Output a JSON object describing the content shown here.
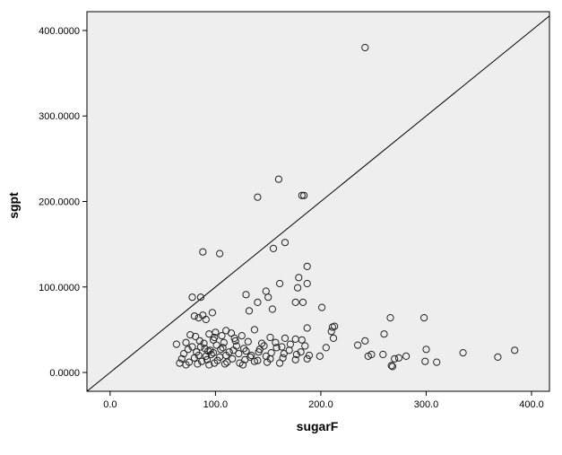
{
  "chart_data": {
    "type": "scatter",
    "title": "",
    "xlabel": "sugarF",
    "ylabel": "sgpt",
    "xlim": [
      -22,
      417
    ],
    "ylim": [
      -22,
      422
    ],
    "x_ticks": [
      0,
      100,
      200,
      300,
      400
    ],
    "x_tick_labels": [
      "0.0",
      "100.0",
      "200.0",
      "300.0",
      "400.0"
    ],
    "y_ticks": [
      0,
      100,
      200,
      300,
      400
    ],
    "y_tick_labels": [
      "0.0000",
      "100.0000",
      "200.0000",
      "300.0000",
      "400.0000"
    ],
    "grid": false,
    "legend": "none",
    "reference_line": "y = x",
    "colors": {
      "plot_background": "#eeeeee",
      "marker_stroke": "#222222",
      "line": "#000000"
    },
    "series": [
      {
        "points": [
          [
            242,
            380
          ],
          [
            160,
            226
          ],
          [
            140,
            205
          ],
          [
            182,
            207
          ],
          [
            184,
            207
          ],
          [
            88,
            141
          ],
          [
            104,
            139
          ],
          [
            155,
            145
          ],
          [
            166,
            152
          ],
          [
            187,
            124
          ],
          [
            179,
            111
          ],
          [
            187,
            104
          ],
          [
            161,
            104
          ],
          [
            178,
            99
          ],
          [
            78,
            88
          ],
          [
            86,
            88
          ],
          [
            129,
            91
          ],
          [
            148,
            95
          ],
          [
            150,
            88
          ],
          [
            140,
            82
          ],
          [
            176,
            82
          ],
          [
            183,
            82
          ],
          [
            201,
            76
          ],
          [
            154,
            74
          ],
          [
            132,
            72
          ],
          [
            97,
            70
          ],
          [
            80,
            66
          ],
          [
            84,
            64
          ],
          [
            88,
            67
          ],
          [
            91,
            62
          ],
          [
            266,
            64
          ],
          [
            298,
            64
          ],
          [
            187,
            52
          ],
          [
            213,
            54
          ],
          [
            211,
            53
          ],
          [
            210,
            48
          ],
          [
            260,
            45
          ],
          [
            137,
            50
          ],
          [
            110,
            49
          ],
          [
            76,
            44
          ],
          [
            81,
            42
          ],
          [
            94,
            45
          ],
          [
            100,
            47
          ],
          [
            115,
            46
          ],
          [
            125,
            43
          ],
          [
            152,
            41
          ],
          [
            166,
            40
          ],
          [
            176,
            39
          ],
          [
            182,
            38
          ],
          [
            212,
            40
          ],
          [
            242,
            37
          ],
          [
            63,
            33
          ],
          [
            72,
            35
          ],
          [
            85,
            37
          ],
          [
            98,
            38
          ],
          [
            108,
            35
          ],
          [
            119,
            37
          ],
          [
            131,
            36
          ],
          [
            144,
            34
          ],
          [
            157,
            35
          ],
          [
            171,
            33
          ],
          [
            185,
            31
          ],
          [
            205,
            29
          ],
          [
            235,
            32
          ],
          [
            300,
            27
          ],
          [
            384,
            26
          ],
          [
            335,
            23
          ],
          [
            70,
            22
          ],
          [
            82,
            24
          ],
          [
            93,
            25
          ],
          [
            105,
            27
          ],
          [
            117,
            26
          ],
          [
            129,
            25
          ],
          [
            141,
            24
          ],
          [
            153,
            23
          ],
          [
            165,
            22
          ],
          [
            177,
            21
          ],
          [
            189,
            20
          ],
          [
            199,
            19
          ],
          [
            245,
            19
          ],
          [
            248,
            21
          ],
          [
            259,
            21
          ],
          [
            281,
            19
          ],
          [
            368,
            18
          ],
          [
            68,
            16
          ],
          [
            80,
            17
          ],
          [
            92,
            15
          ],
          [
            104,
            18
          ],
          [
            116,
            16
          ],
          [
            128,
            15
          ],
          [
            140,
            14
          ],
          [
            152,
            16
          ],
          [
            164,
            17
          ],
          [
            176,
            15
          ],
          [
            187,
            16
          ],
          [
            270,
            16
          ],
          [
            274,
            17
          ],
          [
            66,
            11
          ],
          [
            75,
            12
          ],
          [
            87,
            13
          ],
          [
            99,
            11
          ],
          [
            111,
            12
          ],
          [
            123,
            11
          ],
          [
            137,
            13
          ],
          [
            149,
            12
          ],
          [
            161,
            11
          ],
          [
            299,
            13
          ],
          [
            310,
            12
          ],
          [
            267,
            8
          ],
          [
            268,
            7
          ],
          [
            86,
            30
          ],
          [
            90,
            28
          ],
          [
            95,
            26
          ],
          [
            101,
            32
          ],
          [
            107,
            29
          ],
          [
            113,
            24
          ],
          [
            120,
            31
          ],
          [
            127,
            28
          ],
          [
            134,
            20
          ],
          [
            142,
            27
          ],
          [
            148,
            19
          ],
          [
            158,
            29
          ],
          [
            170,
            26
          ],
          [
            181,
            24
          ],
          [
            78,
            30
          ],
          [
            84,
            20
          ],
          [
            96,
            21
          ],
          [
            102,
            14
          ],
          [
            110,
            20
          ],
          [
            122,
            22
          ],
          [
            133,
            18
          ],
          [
            74,
            27
          ],
          [
            89,
            34
          ],
          [
            99,
            41
          ],
          [
            106,
            43
          ],
          [
            118,
            40
          ],
          [
            146,
            31
          ],
          [
            163,
            30
          ],
          [
            83,
            10
          ],
          [
            94,
            9
          ],
          [
            72,
            9
          ],
          [
            109,
            10
          ],
          [
            126,
            9
          ],
          [
            98,
            23
          ],
          [
            91,
            19
          ]
        ]
      }
    ]
  }
}
